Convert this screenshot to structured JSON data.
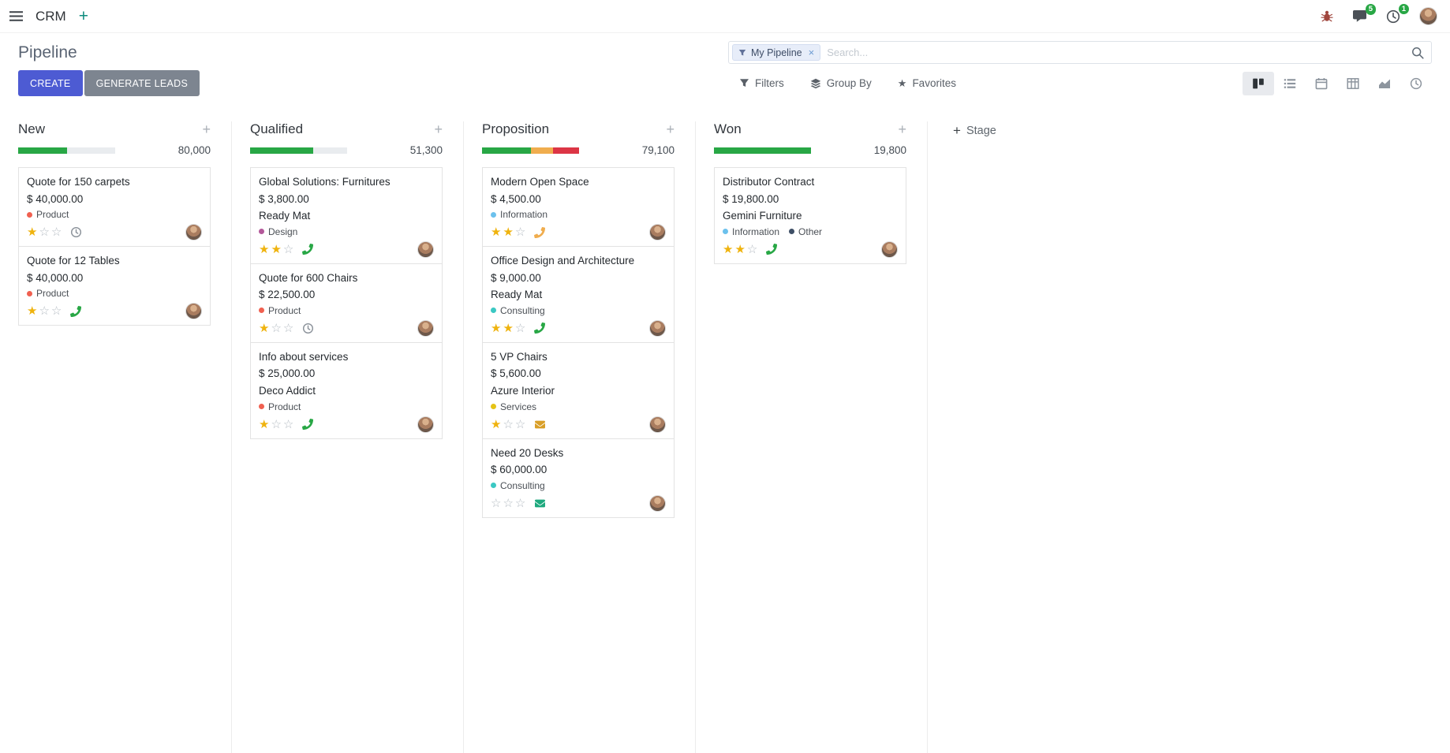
{
  "navbar": {
    "app": "CRM",
    "message_badge": "5",
    "activity_badge": "1"
  },
  "control": {
    "title": "Pipeline",
    "create": "CREATE",
    "generate_leads": "GENERATE LEADS",
    "facet_label": "My Pipeline",
    "search_placeholder": "Search...",
    "filters": "Filters",
    "group_by": "Group By",
    "favorites": "Favorites"
  },
  "colors": {
    "primary": "#4d5bd3",
    "secondary": "#7d8590",
    "success": "#28a745",
    "warning": "#f0ad4e",
    "danger": "#dc3545",
    "star_gold": "#efb30e",
    "star_empty": "#b4bbc2",
    "badge_green": "#28a745",
    "facet_bg": "#e7edf9"
  },
  "kanban": {
    "add_stage": "Stage",
    "columns": [
      {
        "name": "New",
        "counter": "80,000",
        "bar": [
          {
            "color": "success",
            "pct": 50
          }
        ],
        "cards": [
          {
            "title": "Quote for 150 carpets",
            "amount": "$ 40,000.00",
            "tags": [
              {
                "label": "Product",
                "color": "#f06050"
              }
            ],
            "stars": 1,
            "activity": {
              "type": "clock",
              "color": "#8a9199"
            }
          },
          {
            "title": "Quote for 12 Tables",
            "amount": "$ 40,000.00",
            "tags": [
              {
                "label": "Product",
                "color": "#f06050"
              }
            ],
            "stars": 1,
            "activity": {
              "type": "phone",
              "color": "#28a745"
            }
          }
        ]
      },
      {
        "name": "Qualified",
        "counter": "51,300",
        "bar": [
          {
            "color": "success",
            "pct": 65
          }
        ],
        "cards": [
          {
            "title": "Global Solutions: Furnitures",
            "amount": "$ 3,800.00",
            "company": "Ready Mat",
            "tags": [
              {
                "label": "Design",
                "color": "#b3589a"
              }
            ],
            "stars": 2,
            "activity": {
              "type": "phone",
              "color": "#28a745"
            }
          },
          {
            "title": "Quote for 600 Chairs",
            "amount": "$ 22,500.00",
            "tags": [
              {
                "label": "Product",
                "color": "#f06050"
              }
            ],
            "stars": 1,
            "activity": {
              "type": "clock",
              "color": "#8a9199"
            }
          },
          {
            "title": "Info about services",
            "amount": "$ 25,000.00",
            "company": "Deco Addict",
            "tags": [
              {
                "label": "Product",
                "color": "#f06050"
              }
            ],
            "stars": 1,
            "activity": {
              "type": "phone",
              "color": "#28a745"
            }
          }
        ]
      },
      {
        "name": "Proposition",
        "counter": "79,100",
        "bar": [
          {
            "color": "success",
            "pct": 50
          },
          {
            "color": "warning",
            "pct": 23
          },
          {
            "color": "danger",
            "pct": 27
          }
        ],
        "cards": [
          {
            "title": "Modern Open Space",
            "amount": "$ 4,500.00",
            "tags": [
              {
                "label": "Information",
                "color": "#6cc1ed"
              }
            ],
            "stars": 2,
            "activity": {
              "type": "phone",
              "color": "#f0ad4e"
            }
          },
          {
            "title": "Office Design and Architecture",
            "amount": "$ 9,000.00",
            "company": "Ready Mat",
            "tags": [
              {
                "label": "Consulting",
                "color": "#3bc8c3"
              }
            ],
            "stars": 2,
            "activity": {
              "type": "phone",
              "color": "#28a745"
            }
          },
          {
            "title": "5 VP Chairs",
            "amount": "$ 5,600.00",
            "company": "Azure Interior",
            "tags": [
              {
                "label": "Services",
                "color": "#e5c316"
              }
            ],
            "stars": 1,
            "activity": {
              "type": "envelope",
              "color": "#d99f27"
            }
          },
          {
            "title": "Need 20 Desks",
            "amount": "$ 60,000.00",
            "tags": [
              {
                "label": "Consulting",
                "color": "#3bc8c3"
              }
            ],
            "stars": 0,
            "activity": {
              "type": "envelope",
              "color": "#1fa97e"
            }
          }
        ]
      },
      {
        "name": "Won",
        "counter": "19,800",
        "bar": [
          {
            "color": "success",
            "pct": 100
          }
        ],
        "cards": [
          {
            "title": "Distributor Contract",
            "amount": "$ 19,800.00",
            "company": "Gemini Furniture",
            "tags": [
              {
                "label": "Information",
                "color": "#6cc1ed"
              },
              {
                "label": "Other",
                "color": "#3e4f66"
              }
            ],
            "stars": 2,
            "activity": {
              "type": "phone",
              "color": "#28a745"
            }
          }
        ]
      }
    ]
  }
}
